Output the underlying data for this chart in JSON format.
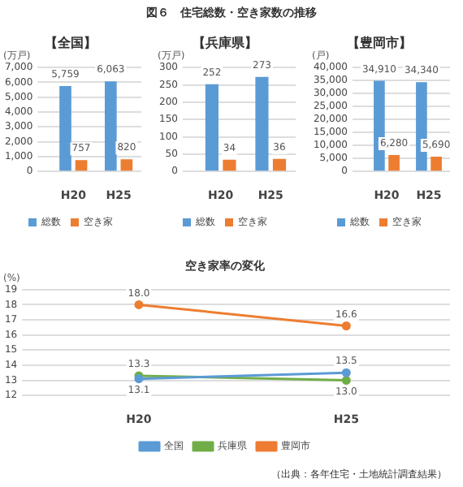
{
  "chart_data": [
    {
      "type": "bar",
      "title": "【全国】",
      "ylabel": "(万戸)",
      "annotations": [
        "図６　住宅総数・空き家数の推移"
      ],
      "categories": [
        "H20",
        "H25"
      ],
      "series": [
        {
          "name": "総数",
          "color": "#5b9bd5",
          "values": [
            5759,
            6063
          ],
          "value_labels": [
            "5,759",
            "6,063"
          ]
        },
        {
          "name": "空き家",
          "color": "#ed7d31",
          "values": [
            757,
            820
          ],
          "value_labels": [
            "757",
            "820"
          ]
        }
      ],
      "ylim": [
        0,
        7000
      ],
      "yticks": [
        0,
        {
          "value": 1000,
          "label": "1,000"
        },
        {
          "value": 2000,
          "label": "2,000"
        },
        {
          "value": 3000,
          "label": "3,000"
        },
        {
          "value": 4000,
          "label": "4,000"
        },
        {
          "value": 5000,
          "label": "5,000"
        },
        {
          "value": 6000,
          "label": "6,000"
        },
        {
          "value": 7000,
          "label": "7,000"
        }
      ],
      "grid": "y",
      "legend": "bottom"
    },
    {
      "type": "bar",
      "title": "【兵庫県】",
      "ylabel": "(万戸)",
      "categories": [
        "H20",
        "H25"
      ],
      "series": [
        {
          "name": "総数",
          "color": "#5b9bd5",
          "values": [
            252,
            273
          ],
          "value_labels": [
            "252",
            "273"
          ]
        },
        {
          "name": "空き家",
          "color": "#ed7d31",
          "values": [
            34,
            36
          ],
          "value_labels": [
            "34",
            "36"
          ]
        }
      ],
      "ylim": [
        0,
        300
      ],
      "yticks": [
        0,
        50,
        100,
        150,
        200,
        250,
        300
      ],
      "grid": "y",
      "legend": "bottom"
    },
    {
      "type": "bar",
      "title": "【豊岡市】",
      "ylabel": "(戸)",
      "categories": [
        "H20",
        "H25"
      ],
      "series": [
        {
          "name": "総数",
          "color": "#5b9bd5",
          "values": [
            34910,
            34340
          ],
          "value_labels": [
            "34,910",
            "34,340"
          ]
        },
        {
          "name": "空き家",
          "color": "#ed7d31",
          "values": [
            6280,
            5690
          ],
          "value_labels": [
            "6,280",
            "5,690"
          ]
        }
      ],
      "ylim": [
        0,
        40000
      ],
      "yticks": [
        0,
        {
          "value": 5000,
          "label": "5,000"
        },
        {
          "value": 10000,
          "label": "10,000"
        },
        {
          "value": 15000,
          "label": "15,000"
        },
        {
          "value": 20000,
          "label": "20,000"
        },
        {
          "value": 25000,
          "label": "25,000"
        },
        {
          "value": 30000,
          "label": "30,000"
        },
        {
          "value": 35000,
          "label": "35,000"
        },
        {
          "value": 40000,
          "label": "40,000"
        }
      ],
      "grid": "y",
      "legend": "bottom"
    },
    {
      "type": "line",
      "title": "空き家率の変化",
      "ylabel": "(%)",
      "annotations": [
        "（出典：各年住宅・土地統計調査結果）"
      ],
      "categories": [
        "H20",
        "H25"
      ],
      "series": [
        {
          "name": "全国",
          "color": "#5b9bd5",
          "values": [
            13.1,
            13.5
          ],
          "value_labels": [
            "13.1",
            "13.5"
          ]
        },
        {
          "name": "兵庫県",
          "color": "#70ad47",
          "values": [
            13.3,
            13.0
          ],
          "value_labels": [
            "13.3",
            "13.0"
          ]
        },
        {
          "name": "豊岡市",
          "color": "#ed7d31",
          "values": [
            18.0,
            16.6
          ],
          "value_labels": [
            "18.0",
            "16.6"
          ]
        }
      ],
      "ylim": [
        12,
        19
      ],
      "yticks": [
        12,
        13,
        14,
        15,
        16,
        17,
        18,
        19
      ],
      "grid": "y",
      "legend": "bottom",
      "marker": "circle"
    }
  ]
}
